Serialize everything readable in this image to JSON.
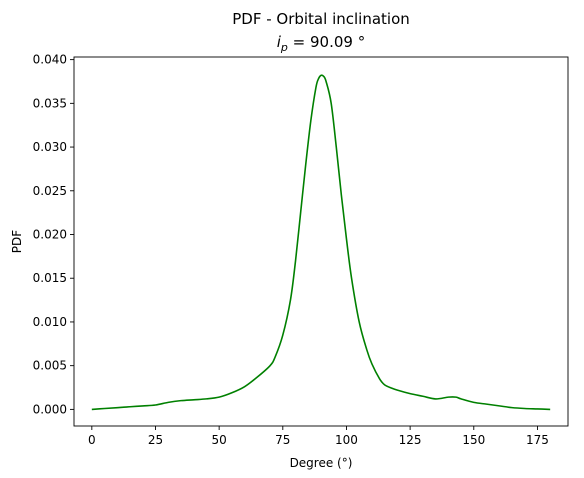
{
  "chart_data": {
    "type": "line",
    "title_line1": "PDF - Orbital inclination",
    "title_line2": {
      "symbol": "i",
      "subscript": "p",
      "rest": " = 90.09 °"
    },
    "xlabel": "Degree (°)",
    "ylabel": "PDF",
    "xlim": [
      -7,
      187
    ],
    "ylim": [
      -0.0019,
      0.0403
    ],
    "xticks": [
      0,
      25,
      50,
      75,
      100,
      125,
      150,
      175
    ],
    "xtick_labels": [
      "0",
      "25",
      "50",
      "75",
      "100",
      "125",
      "150",
      "175"
    ],
    "yticks": [
      0.0,
      0.005,
      0.01,
      0.015,
      0.02,
      0.025,
      0.03,
      0.035,
      0.04
    ],
    "ytick_labels": [
      "0.000",
      "0.005",
      "0.010",
      "0.015",
      "0.020",
      "0.025",
      "0.030",
      "0.035",
      "0.040"
    ],
    "series": [
      {
        "name": "PDF",
        "color": "#008000",
        "x": [
          0,
          5,
          10,
          15,
          20,
          25,
          30,
          35,
          40,
          45,
          50,
          55,
          60,
          65,
          70,
          72,
          75,
          78,
          80,
          82,
          84,
          86,
          88,
          89,
          90,
          91,
          92,
          94,
          96,
          98,
          100,
          102,
          105,
          108,
          110,
          113,
          115,
          118,
          120,
          125,
          130,
          135,
          140,
          143,
          145,
          150,
          155,
          160,
          165,
          170,
          175,
          180
        ],
        "y": [
          0.0,
          0.0001,
          0.0002,
          0.0003,
          0.0004,
          0.0005,
          0.0008,
          0.001,
          0.0011,
          0.0012,
          0.0014,
          0.0019,
          0.0026,
          0.0037,
          0.005,
          0.006,
          0.0085,
          0.0125,
          0.017,
          0.0225,
          0.028,
          0.033,
          0.0368,
          0.0378,
          0.0382,
          0.0381,
          0.0375,
          0.035,
          0.03,
          0.0245,
          0.0195,
          0.015,
          0.01,
          0.0068,
          0.0052,
          0.0035,
          0.0028,
          0.0024,
          0.0022,
          0.0018,
          0.0015,
          0.0012,
          0.0014,
          0.0014,
          0.0012,
          0.0008,
          0.0006,
          0.0004,
          0.0002,
          0.0001,
          5e-05,
          0.0
        ]
      }
    ]
  }
}
